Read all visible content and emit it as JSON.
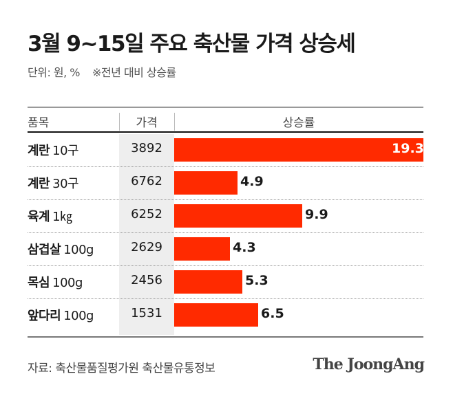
{
  "title": "3월 9~15일 주요 축산물 가격 상승세",
  "subtitle": {
    "unit": "단위: 원, %",
    "note": "※전년 대비 상승률"
  },
  "chart_data": {
    "type": "bar",
    "title": "3월 9~15일 주요 축산물 가격 상승세",
    "columns": [
      "품목",
      "가격",
      "상승률"
    ],
    "rows": [
      {
        "name": "계란",
        "unit": "10구",
        "price": "3892",
        "value": 19.3
      },
      {
        "name": "계란",
        "unit": "30구",
        "price": "6762",
        "value": 4.9
      },
      {
        "name": "육계",
        "unit": "1㎏",
        "price": "6252",
        "value": 9.9
      },
      {
        "name": "삼겹살",
        "unit": "100g",
        "price": "2629",
        "value": 4.3
      },
      {
        "name": "목심",
        "unit": "100g",
        "price": "2456",
        "value": 5.3
      },
      {
        "name": "앞다리",
        "unit": "100g",
        "price": "1531",
        "value": 6.5
      }
    ],
    "bar_color": "#ff2a00"
  },
  "source": "자료: 축산물품질평가원 축산물유통정보",
  "logo": "The JoongAng"
}
